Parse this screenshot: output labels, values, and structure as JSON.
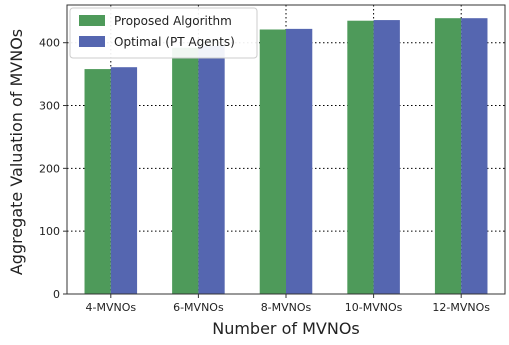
{
  "chart_data": {
    "type": "bar",
    "title": "",
    "xlabel": "Number of MVNOs",
    "ylabel": "Aggregate Valuation of MVNOs",
    "categories": [
      "4-MVNOs",
      "6-MVNOs",
      "8-MVNOs",
      "10-MVNOs",
      "12-MVNOs"
    ],
    "series": [
      {
        "name": "Proposed Algorithm",
        "values": [
          358,
          392,
          421,
          435,
          439
        ],
        "color": "#4e9a5a"
      },
      {
        "name": "Optimal (PT Agents)",
        "values": [
          361,
          395,
          422,
          436,
          439
        ],
        "color": "#5566b0"
      }
    ],
    "ylim": [
      0,
      460
    ],
    "yticks": [
      0,
      100,
      200,
      300,
      400
    ],
    "grid": true,
    "legend": "top-left"
  }
}
